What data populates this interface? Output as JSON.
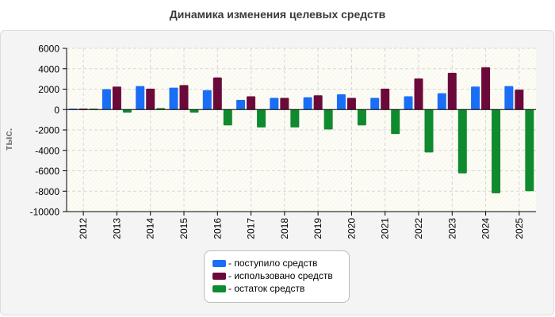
{
  "chart_data": {
    "type": "bar",
    "title": "Динамика изменения целевых средств",
    "xlabel": "",
    "ylabel": "тыс.",
    "ylim": [
      -10000,
      6000
    ],
    "yticks": [
      6000,
      4000,
      2000,
      0,
      -2000,
      -4000,
      -6000,
      -8000,
      -10000
    ],
    "grid": true,
    "legend_position": "bottom",
    "categories": [
      "2012",
      "2013",
      "2014",
      "2015",
      "2016",
      "2017",
      "2018",
      "2019",
      "2020",
      "2021",
      "2022",
      "2023",
      "2024",
      "2025"
    ],
    "series": [
      {
        "name": "- поступило средств",
        "color": "#1a6ef5",
        "values": [
          100,
          2000,
          2300,
          2150,
          1900,
          950,
          1150,
          1200,
          1500,
          1150,
          1300,
          1600,
          2250,
          2300
        ]
      },
      {
        "name": "- использовано средств",
        "color": "#6b0a3a",
        "values": [
          100,
          2250,
          2050,
          2400,
          3150,
          1300,
          1150,
          1400,
          1150,
          2050,
          3050,
          3600,
          4150,
          1950
        ]
      },
      {
        "name": "- остаток средств",
        "color": "#0f8a2e",
        "values": [
          100,
          -300,
          150,
          -300,
          -1550,
          -1750,
          -1750,
          -1950,
          -1550,
          -2400,
          -4200,
          -6250,
          -8200,
          -8000
        ]
      }
    ]
  }
}
